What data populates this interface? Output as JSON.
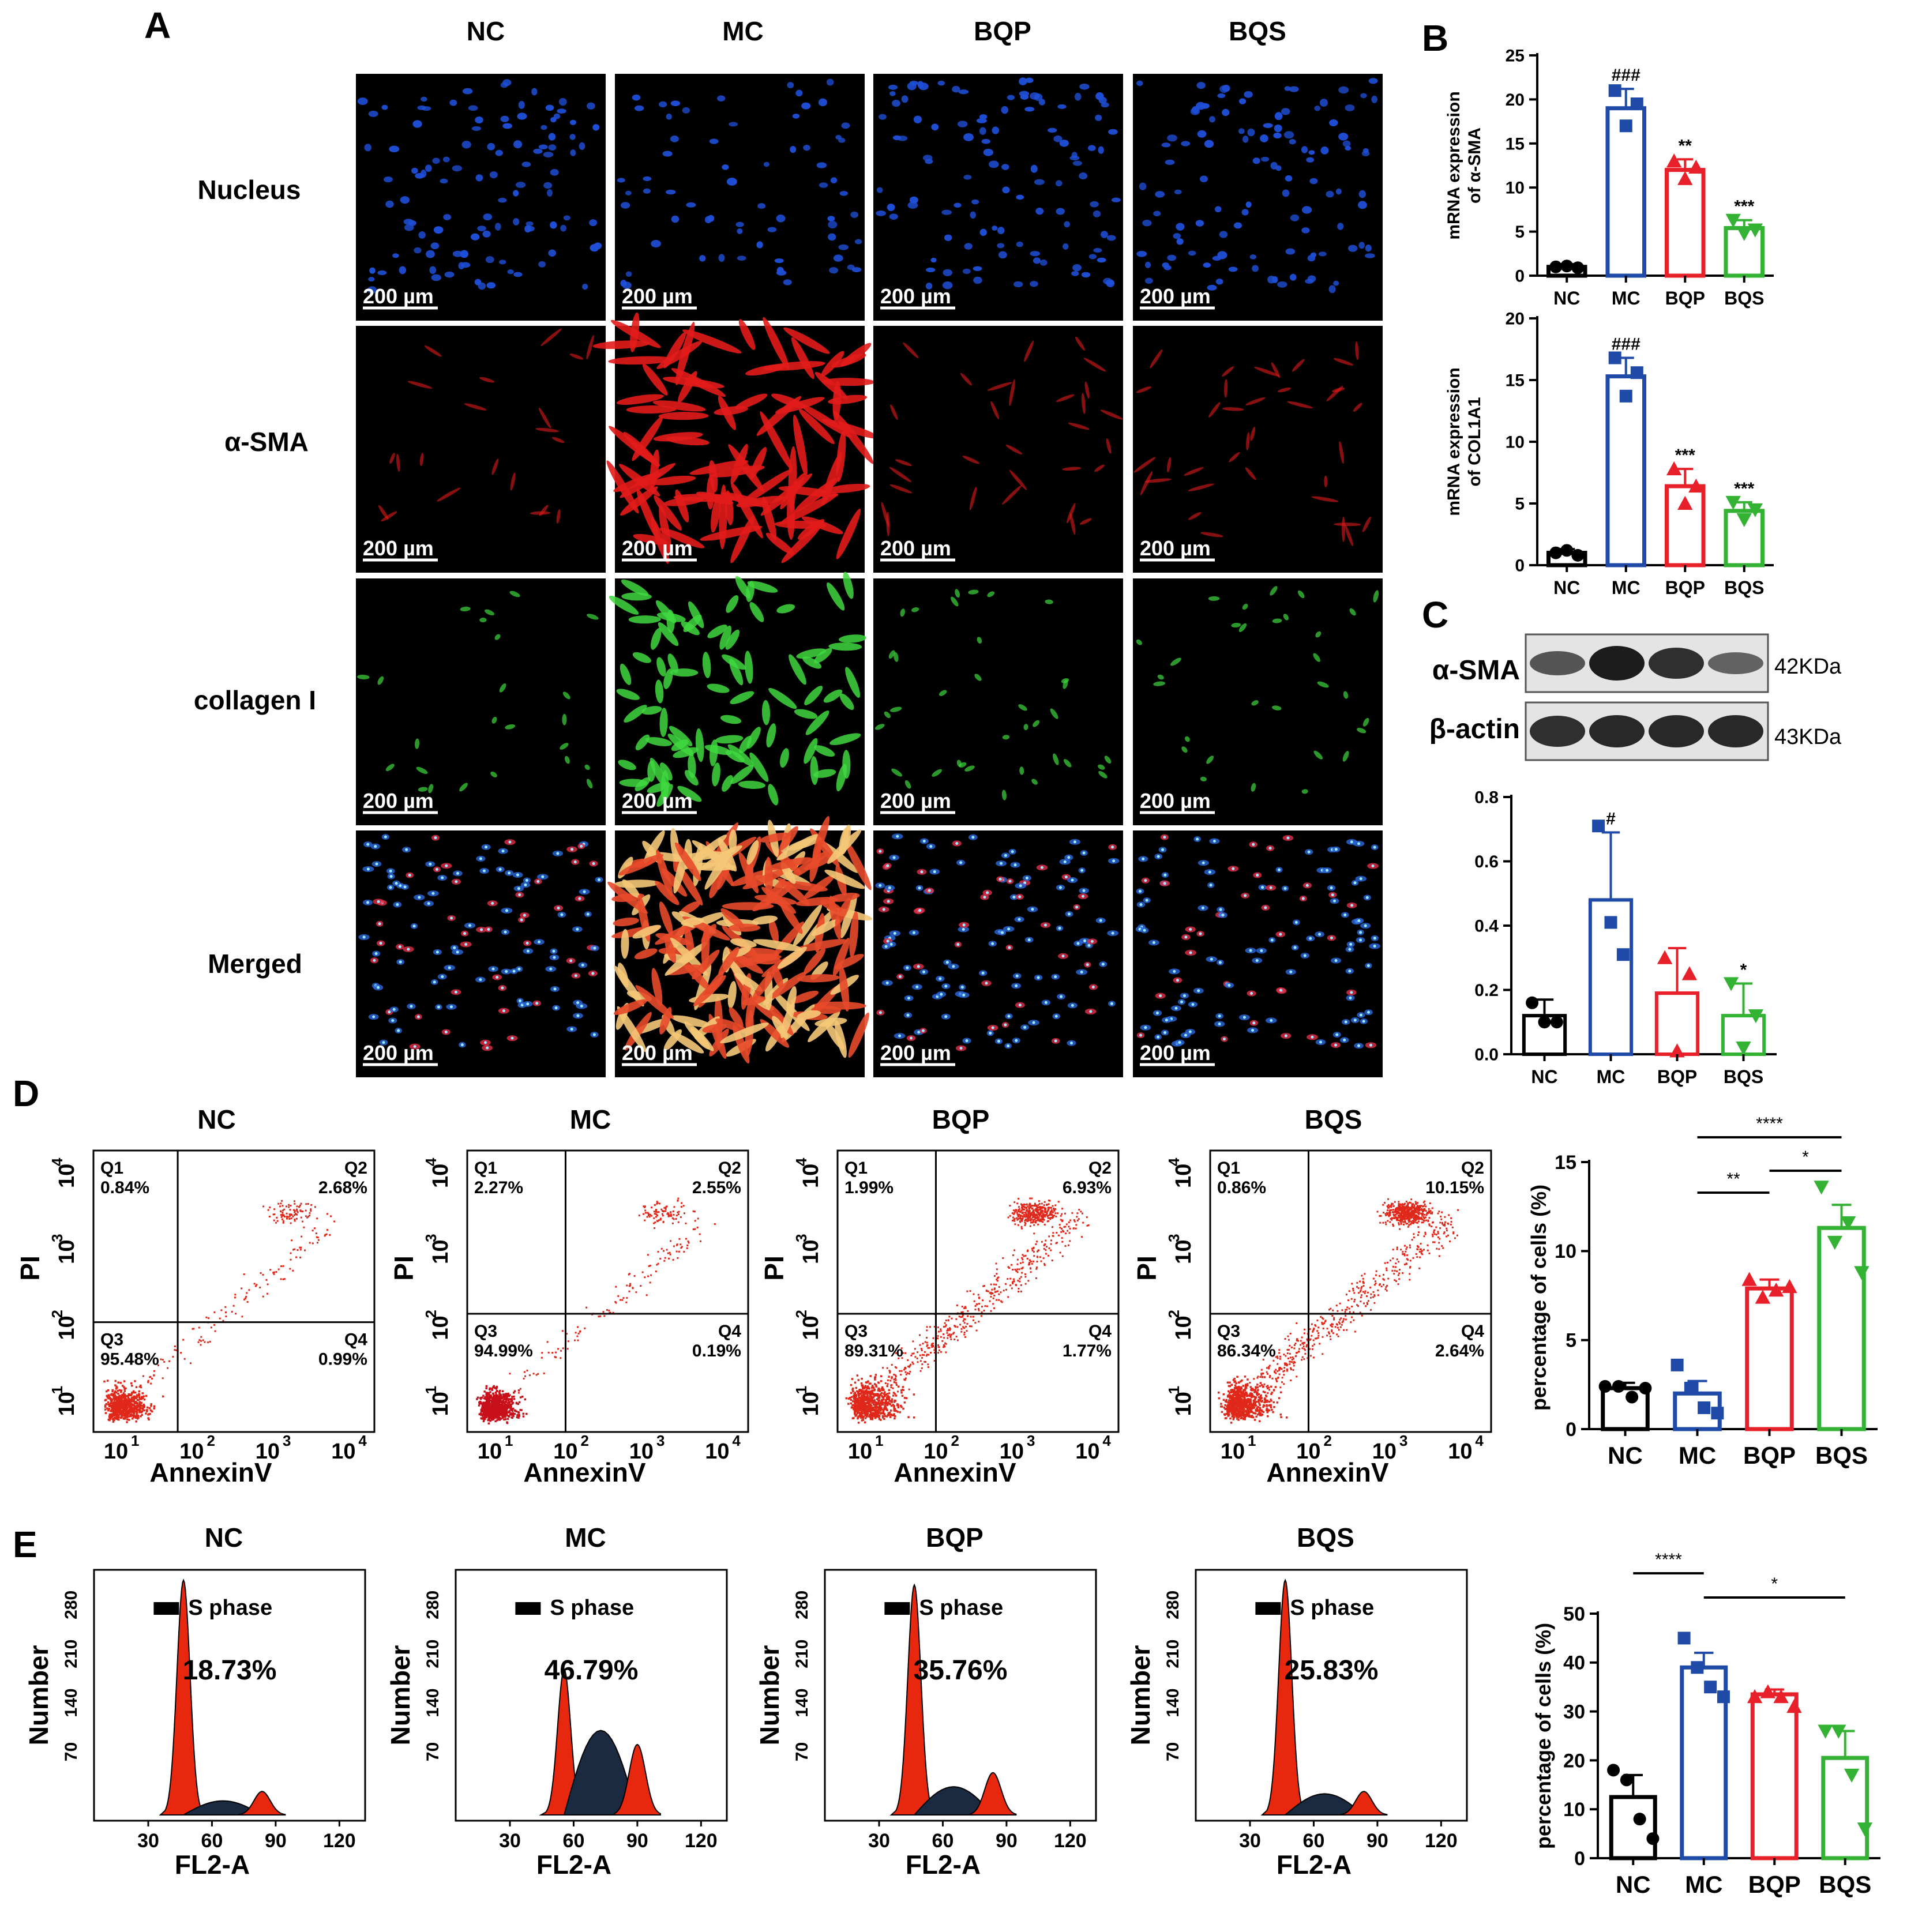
{
  "panel_labels": {
    "A": "A",
    "B": "B",
    "C": "C",
    "D": "D",
    "E": "E"
  },
  "colors": {
    "NC": "#000000",
    "MC": "#1f4aa8",
    "BQP": "#e8202a",
    "BQS": "#33b233",
    "hist_fill": "#e8270f",
    "s_phase_fill": "#1a2a40"
  },
  "panel_A": {
    "columns": [
      "NC",
      "MC",
      "BQP",
      "BQS"
    ],
    "rows": [
      "Nucleus",
      "α-SMA",
      "collagen I",
      "Merged"
    ],
    "row_stain": [
      "blue-nuclei",
      "red-alpha-sma",
      "green-collagen",
      "merged-overlay"
    ],
    "scale_bar": "200 µm"
  },
  "panel_B": {
    "chart_data": [
      {
        "type": "bar",
        "ylabel": "mRNA expression of α-SMA",
        "ylabel_lines": [
          "mRNA expression",
          "of α-SMA"
        ],
        "categories": [
          "NC",
          "MC",
          "BQP",
          "BQS"
        ],
        "values": [
          1.0,
          19.0,
          12.0,
          5.4
        ],
        "errors": [
          0.3,
          2.2,
          1.2,
          0.9
        ],
        "points": [
          [
            1.0,
            1.1,
            0.9
          ],
          [
            21.0,
            17.0,
            19.5
          ],
          [
            13.0,
            11.0,
            12.3
          ],
          [
            6.3,
            4.8,
            5.2
          ]
        ],
        "sig": [
          "",
          "###",
          "**",
          "***"
        ],
        "ylim": [
          0,
          25
        ],
        "yticks": [
          0,
          5,
          10,
          15,
          20,
          25
        ]
      },
      {
        "type": "bar",
        "ylabel": "mRNA expression of COL1A1",
        "ylabel_lines": [
          "mRNA expression",
          "of COL1A1"
        ],
        "categories": [
          "NC",
          "MC",
          "BQP",
          "BQS"
        ],
        "values": [
          1.0,
          15.3,
          6.4,
          4.4
        ],
        "errors": [
          0.3,
          1.5,
          1.4,
          0.7
        ],
        "points": [
          [
            1.0,
            1.2,
            0.8
          ],
          [
            16.8,
            13.7,
            15.6
          ],
          [
            7.8,
            5.0,
            6.4
          ],
          [
            5.1,
            3.7,
            4.5
          ]
        ],
        "sig": [
          "",
          "###",
          "***",
          "***"
        ],
        "ylim": [
          0,
          20
        ],
        "yticks": [
          0,
          5,
          10,
          15,
          20
        ]
      }
    ]
  },
  "panel_C": {
    "blot_rows": [
      {
        "label": "α-SMA",
        "kda": "42KDa",
        "bands": [
          0.55,
          1.0,
          0.85,
          0.45
        ]
      },
      {
        "label": "β-actin",
        "kda": "43KDa",
        "bands": [
          0.85,
          0.9,
          0.9,
          0.9
        ]
      }
    ],
    "chart_data": {
      "type": "bar",
      "ylabel": "",
      "categories": [
        "NC",
        "MC",
        "BQP",
        "BQS"
      ],
      "values": [
        0.12,
        0.48,
        0.19,
        0.12
      ],
      "errors": [
        0.05,
        0.21,
        0.14,
        0.1
      ],
      "points": [
        [
          0.16,
          0.1,
          0.1
        ],
        [
          0.71,
          0.41,
          0.31
        ],
        [
          0.3,
          0.01,
          0.25
        ],
        [
          0.22,
          0.02,
          0.12
        ]
      ],
      "sig": [
        "",
        "#",
        "",
        "*"
      ],
      "ylim": [
        0,
        0.8
      ],
      "yticks": [
        0.0,
        0.2,
        0.4,
        0.6,
        0.8
      ],
      "ytick_labels": [
        "0.0",
        "0.2",
        "0.4",
        "0.6",
        "0.8"
      ]
    }
  },
  "panel_D": {
    "xlabel": "AnnexinV",
    "ylabel": "PI",
    "log_ticks": [
      "10",
      "10",
      "10",
      "10"
    ],
    "log_exp": [
      "1",
      "2",
      "3",
      "4"
    ],
    "plots": [
      {
        "title": "NC",
        "q1": "Q1",
        "q1_val": "0.84%",
        "q2": "Q2",
        "q2_val": "2.68%",
        "q3": "Q3",
        "q3_val": "95.48%",
        "q4": "Q4",
        "q4_val": "0.99%"
      },
      {
        "title": "MC",
        "q1": "Q1",
        "q1_val": "2.27%",
        "q2": "Q2",
        "q2_val": "2.55%",
        "q3": "Q3",
        "q3_val": "94.99%",
        "q4": "Q4",
        "q4_val": "0.19%"
      },
      {
        "title": "BQP",
        "q1": "Q1",
        "q1_val": "1.99%",
        "q2": "Q2",
        "q2_val": "6.93%",
        "q3": "Q3",
        "q3_val": "89.31%",
        "q4": "Q4",
        "q4_val": "1.77%"
      },
      {
        "title": "BQS",
        "q1": "Q1",
        "q1_val": "0.86%",
        "q2": "Q2",
        "q2_val": "10.15%",
        "q3": "Q3",
        "q3_val": "86.34%",
        "q4": "Q4",
        "q4_val": "2.64%"
      }
    ],
    "chart_data": {
      "type": "bar",
      "ylabel": "percentage of cells (%)",
      "categories": [
        "NC",
        "MC",
        "BQP",
        "BQS"
      ],
      "values": [
        2.3,
        2.0,
        7.9,
        11.3
      ],
      "errors": [
        0.3,
        0.7,
        0.5,
        1.3
      ],
      "points": [
        [
          2.4,
          2.4,
          1.8,
          2.3
        ],
        [
          3.6,
          2.3,
          1.2,
          0.9
        ],
        [
          8.4,
          7.4,
          7.8,
          8.0
        ],
        [
          13.6,
          10.5,
          11.6,
          8.8
        ]
      ],
      "ylim": [
        0,
        15
      ],
      "yticks": [
        0,
        5,
        10,
        15
      ],
      "sig_lines": [
        {
          "from": 1,
          "to": 2,
          "label": "**"
        },
        {
          "from": 2,
          "to": 3,
          "label": "*"
        },
        {
          "from": 1,
          "to": 3,
          "label": "****"
        }
      ]
    }
  },
  "panel_E": {
    "xlabel": "FL2-A",
    "ylabel": "Number",
    "legend": "S phase",
    "yticks": [
      "280",
      "210",
      "140",
      "70"
    ],
    "xticks": [
      "30",
      "60",
      "90",
      "120"
    ],
    "plots": [
      {
        "title": "NC",
        "value": "18.73%"
      },
      {
        "title": "MC",
        "value": "46.79%"
      },
      {
        "title": "BQP",
        "value": "35.76%"
      },
      {
        "title": "BQS",
        "value": "25.83%"
      }
    ],
    "chart_data": {
      "type": "bar",
      "ylabel": "percentage of cells (%)",
      "categories": [
        "NC",
        "MC",
        "BQP",
        "BQS"
      ],
      "values": [
        12.5,
        39.0,
        33.5,
        20.5
      ],
      "errors": [
        4.5,
        3.0,
        1.0,
        5.5
      ],
      "points": [
        [
          18,
          16,
          8,
          4
        ],
        [
          45,
          39,
          35,
          33
        ],
        [
          33,
          34,
          33,
          31
        ],
        [
          26,
          26,
          17,
          6
        ]
      ],
      "ylim": [
        0,
        50
      ],
      "yticks": [
        0,
        10,
        20,
        30,
        40,
        50
      ],
      "sig_lines": [
        {
          "from": 0,
          "to": 1,
          "label": "****"
        },
        {
          "from": 1,
          "to": 3,
          "label": "*"
        }
      ]
    }
  }
}
